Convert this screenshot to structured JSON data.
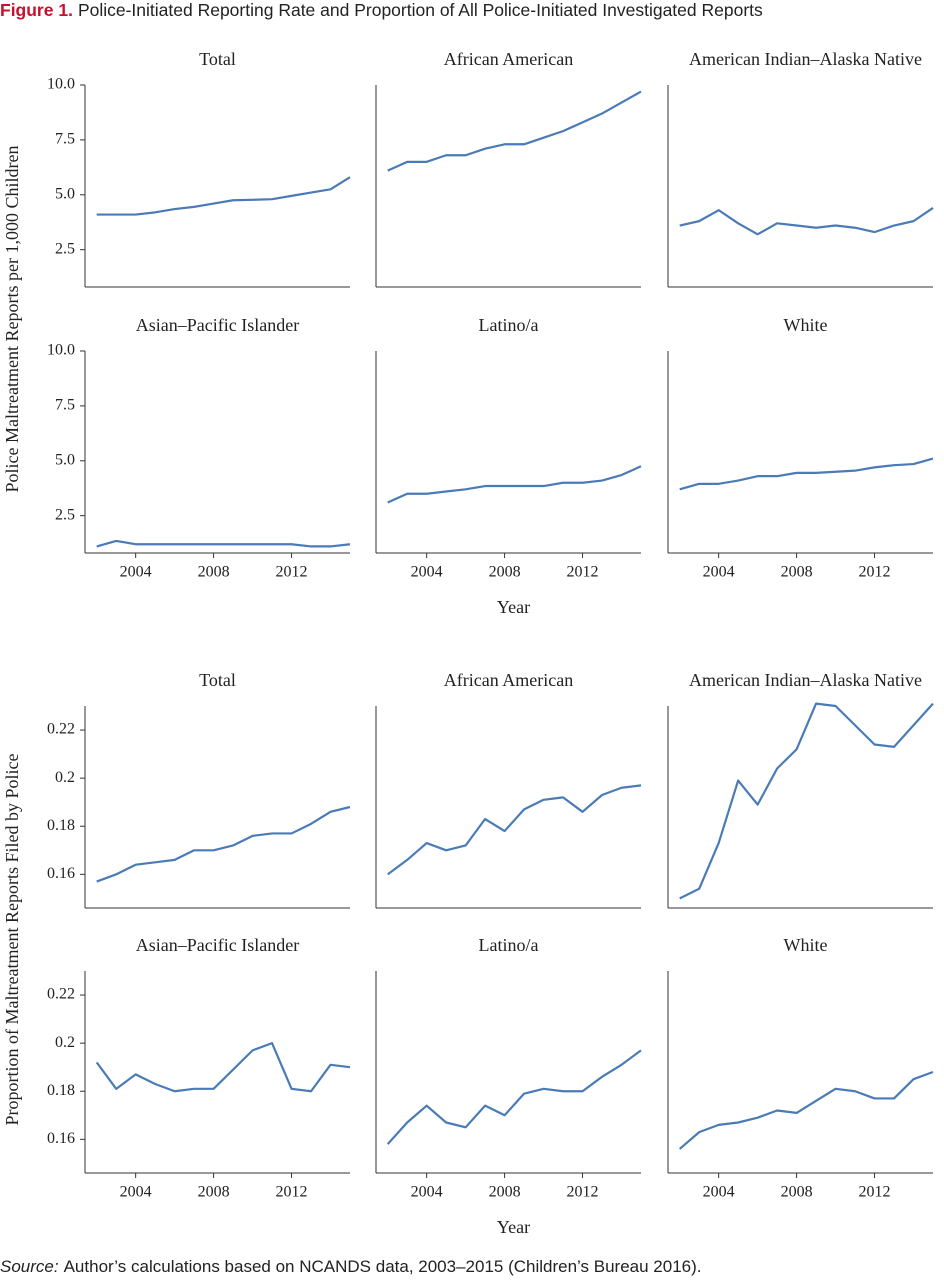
{
  "figure": {
    "label": "Figure 1.",
    "title": "Police-Initiated Reporting Rate and Proportion of All Police-Initiated Investigated Reports"
  },
  "source": {
    "label": "Source:",
    "text": "Author’s calculations based on NCANDS data, 2003–2015 (Children’s Bureau 2016)."
  },
  "chart_data": [
    {
      "type": "line",
      "ylabel": "Police Maltreatment Reports per 1,000 Children",
      "xlabel": "Year",
      "color": "#4a7bb7",
      "x": [
        2002,
        2003,
        2004,
        2005,
        2006,
        2007,
        2008,
        2009,
        2010,
        2011,
        2012,
        2013,
        2014,
        2015
      ],
      "xlim": [
        2001.4,
        2015
      ],
      "xticks": [
        2004,
        2008,
        2012
      ],
      "ylim": [
        0.8,
        10
      ],
      "yticks": [
        2.5,
        {
          "value": 5,
          "label": "5.0"
        },
        7.5,
        {
          "value": 10,
          "label": "10.0"
        }
      ],
      "panels": [
        {
          "title": "Total",
          "values": [
            4.1,
            4.1,
            4.1,
            4.2,
            4.35,
            4.45,
            4.6,
            4.75,
            4.77,
            4.8,
            4.95,
            5.1,
            5.25,
            5.8
          ]
        },
        {
          "title": "African American",
          "values": [
            6.1,
            6.5,
            6.5,
            6.8,
            6.8,
            7.1,
            7.3,
            7.3,
            7.6,
            7.9,
            8.3,
            8.7,
            9.2,
            9.7
          ]
        },
        {
          "title": "American Indian–Alaska Native",
          "values": [
            3.6,
            3.8,
            4.3,
            3.7,
            3.2,
            3.7,
            3.6,
            3.5,
            3.6,
            3.5,
            3.3,
            3.6,
            3.8,
            4.4
          ]
        },
        {
          "title": "Asian–Pacific Islander",
          "values": [
            1.1,
            1.35,
            1.2,
            1.2,
            1.2,
            1.2,
            1.2,
            1.2,
            1.2,
            1.2,
            1.2,
            1.1,
            1.1,
            1.2
          ]
        },
        {
          "title": "Latino/a",
          "values": [
            3.1,
            3.5,
            3.5,
            3.6,
            3.7,
            3.85,
            3.85,
            3.85,
            3.85,
            4.0,
            4.0,
            4.1,
            4.35,
            4.75
          ]
        },
        {
          "title": "White",
          "values": [
            3.7,
            3.95,
            3.95,
            4.1,
            4.3,
            4.3,
            4.45,
            4.45,
            4.5,
            4.55,
            4.7,
            4.8,
            4.85,
            5.1
          ]
        }
      ]
    },
    {
      "type": "line",
      "ylabel": "Proportion of Maltreatment Reports Filed by Police",
      "xlabel": "Year",
      "color": "#4a7bb7",
      "x": [
        2002,
        2003,
        2004,
        2005,
        2006,
        2007,
        2008,
        2009,
        2010,
        2011,
        2012,
        2013,
        2014,
        2015
      ],
      "xlim": [
        2001.4,
        2015
      ],
      "xticks": [
        2004,
        2008,
        2012
      ],
      "ylim": [
        0.146,
        0.23
      ],
      "yticks": [
        0.16,
        0.18,
        0.2,
        0.22
      ],
      "panels": [
        {
          "title": "Total",
          "values": [
            0.157,
            0.16,
            0.164,
            0.165,
            0.166,
            0.17,
            0.17,
            0.172,
            0.176,
            0.177,
            0.177,
            0.181,
            0.186,
            0.188
          ]
        },
        {
          "title": "African American",
          "values": [
            0.16,
            0.166,
            0.173,
            0.17,
            0.172,
            0.183,
            0.178,
            0.187,
            0.191,
            0.192,
            0.186,
            0.193,
            0.196,
            0.197
          ]
        },
        {
          "title": "American Indian–Alaska Native",
          "values": [
            0.15,
            0.154,
            0.173,
            0.199,
            0.189,
            0.204,
            0.212,
            0.231,
            0.23,
            0.222,
            0.214,
            0.213,
            0.222,
            0.231
          ]
        },
        {
          "title": "Asian–Pacific Islander",
          "values": [
            0.192,
            0.181,
            0.187,
            0.183,
            0.18,
            0.181,
            0.181,
            0.189,
            0.197,
            0.2,
            0.181,
            0.18,
            0.191,
            0.19
          ]
        },
        {
          "title": "Latino/a",
          "values": [
            0.158,
            0.167,
            0.174,
            0.167,
            0.165,
            0.174,
            0.17,
            0.179,
            0.181,
            0.18,
            0.18,
            0.186,
            0.191,
            0.197
          ]
        },
        {
          "title": "White",
          "values": [
            0.156,
            0.163,
            0.166,
            0.167,
            0.169,
            0.172,
            0.171,
            0.176,
            0.181,
            0.18,
            0.177,
            0.177,
            0.185,
            0.188
          ]
        }
      ]
    }
  ]
}
